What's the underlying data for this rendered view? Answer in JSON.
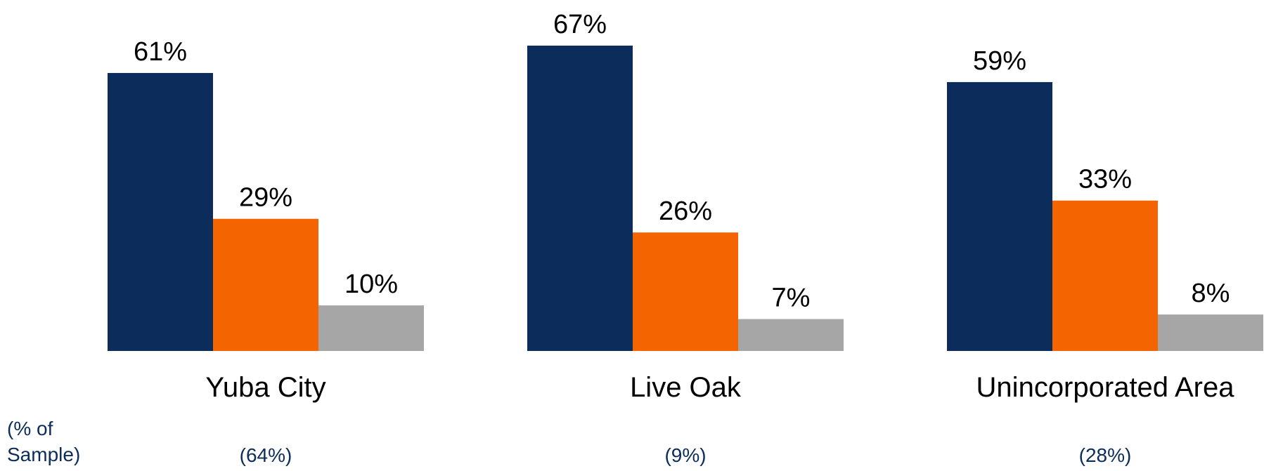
{
  "chart_data": {
    "type": "bar",
    "categories": [
      "Yuba City",
      "Live Oak",
      "Unincorporated Area"
    ],
    "category_notes": [
      "(64%)",
      "(9%)",
      "(28%)"
    ],
    "series": [
      {
        "values": [
          61,
          67,
          59
        ],
        "labels": [
          "61%",
          "67%",
          "59%"
        ],
        "color": "#0c2d5b"
      },
      {
        "values": [
          29,
          26,
          33
        ],
        "labels": [
          "29%",
          "26%",
          "33%"
        ],
        "color": "#f46400"
      },
      {
        "values": [
          10,
          7,
          8
        ],
        "labels": [
          "10%",
          "7%",
          "8%"
        ],
        "color": "#a6a6a6"
      }
    ],
    "ylim": [
      0,
      67
    ],
    "grid": false,
    "legend": "none",
    "axis_note": "(% of Sample)",
    "colors": {
      "text": "#000000",
      "note_text": "#0b2d5b"
    }
  }
}
